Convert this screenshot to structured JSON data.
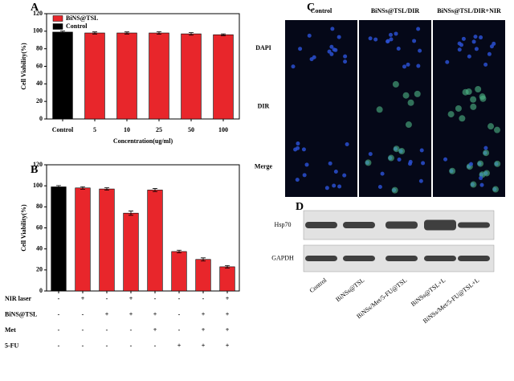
{
  "chart_data": [
    {
      "type": "bar",
      "title": "A",
      "ylabel": "Cell Viability(%)",
      "xlabel": "Concentration(ug/ml)",
      "categories": [
        "Control",
        "5",
        "10",
        "25",
        "50",
        "100"
      ],
      "series": [
        {
          "name": "BiNS@TSL",
          "color": "#e8262b",
          "values": [
            null,
            98,
            98,
            98,
            97,
            96
          ],
          "errors": [
            null,
            1.2,
            1.2,
            1.5,
            1.5,
            1
          ]
        },
        {
          "name": "Control",
          "color": "#000000",
          "values": [
            99,
            null,
            null,
            null,
            null,
            null
          ],
          "errors": [
            1.2,
            null,
            null,
            null,
            null,
            null
          ]
        }
      ],
      "ylim": [
        0,
        120
      ],
      "yticks": [
        0,
        20,
        40,
        60,
        80,
        100,
        120
      ],
      "legend": "upper-left"
    },
    {
      "type": "bar",
      "title": "B",
      "ylabel": "Cell Viability(%)",
      "categories": [
        null,
        null,
        null,
        null,
        null,
        null,
        null,
        null
      ],
      "values": [
        99,
        98,
        97,
        74,
        96,
        37.5,
        30,
        23
      ],
      "errors": [
        1.2,
        1.2,
        1.2,
        2,
        1.5,
        1.3,
        1.5,
        1.2
      ],
      "colors": [
        "#000000",
        "#e8262b",
        "#e8262b",
        "#e8262b",
        "#e8262b",
        "#e8262b",
        "#e8262b",
        "#e8262b"
      ],
      "ylim": [
        0,
        120
      ],
      "yticks": [
        0,
        20,
        40,
        60,
        80,
        100,
        120
      ],
      "treatments": [
        {
          "label": "NIR laser",
          "signs": [
            "-",
            "+",
            "-",
            "+",
            "-",
            "-",
            "-",
            "+"
          ]
        },
        {
          "label": "BiNS@TSL",
          "signs": [
            "-",
            "-",
            "+",
            "+",
            "+",
            "-",
            "+",
            "+"
          ]
        },
        {
          "label": "Met",
          "signs": [
            "-",
            "-",
            "-",
            "-",
            "+",
            "-",
            "+",
            "+"
          ]
        },
        {
          "label": "5-FU",
          "signs": [
            "-",
            "-",
            "-",
            "-",
            "-",
            "+",
            "+",
            "+"
          ]
        }
      ]
    }
  ],
  "panel_c": {
    "title": "C",
    "columns": [
      "Control",
      "BiNSs@TSL/DIR",
      "BiNSs@TSL/DIR+NIR"
    ],
    "rows": [
      "DAPI",
      "DIR",
      "Merge"
    ]
  },
  "panel_d": {
    "title": "D",
    "rows": [
      "Hsp70",
      "GAPDH"
    ],
    "lanes": [
      "Control",
      "BiNSs@TSL",
      "BiNSs/Met/5-FU@TSL",
      "BiNSs@TSL+L",
      "BiNSs/Met/5-FU@TSL+L"
    ]
  }
}
